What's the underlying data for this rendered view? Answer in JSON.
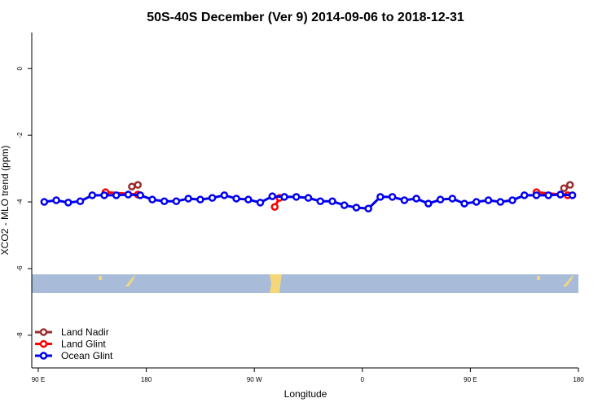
{
  "chart_data": {
    "type": "line",
    "title": "50S-40S December (Ver 9)   2014-09-06 to 2018-12-31",
    "x_label": "Longitude",
    "y_label": "XCO2 - MLO trend (ppm)",
    "xlim": [
      84.6,
      540
    ],
    "ylim": [
      -8.98,
      1.08
    ],
    "xticks": [
      {
        "value": 90,
        "label": "90 E"
      },
      {
        "value": 180,
        "label": "180"
      },
      {
        "value": 270,
        "label": "90 W"
      },
      {
        "value": 360,
        "label": "0"
      },
      {
        "value": 450,
        "label": "90 E"
      },
      {
        "value": 540,
        "label": "180"
      }
    ],
    "yticks": [
      0,
      -2,
      -4,
      -6,
      -8
    ],
    "legend": "bottom-left",
    "series": [
      {
        "name": "Land Nadir",
        "color": "#9b2d2d",
        "x": [
          168,
          173,
          528,
          533
        ],
        "values": [
          -3.54,
          -3.49,
          -3.59,
          -3.49
        ]
      },
      {
        "name": "Land Glint",
        "color": "#ff0000",
        "x": [
          146,
          173,
          287,
          291,
          505,
          531
        ],
        "values": [
          -3.71,
          -3.78,
          -4.15,
          -3.88,
          -3.71,
          -3.8
        ]
      },
      {
        "name": "Ocean Glint",
        "color": "#0000ee",
        "x": [
          95,
          105,
          115,
          125,
          135,
          145,
          155,
          165,
          175,
          185,
          195,
          205,
          215,
          225,
          235,
          245,
          255,
          265,
          275,
          285,
          295,
          305,
          315,
          325,
          335,
          345,
          355,
          365,
          375,
          385,
          395,
          405,
          415,
          425,
          435,
          445,
          455,
          465,
          475,
          485,
          495,
          505,
          515,
          525,
          535
        ],
        "values": [
          -4.0,
          -3.95,
          -4.02,
          -3.98,
          -3.8,
          -3.8,
          -3.8,
          -3.78,
          -3.8,
          -3.93,
          -3.98,
          -3.98,
          -3.9,
          -3.93,
          -3.88,
          -3.8,
          -3.9,
          -3.93,
          -4.02,
          -3.83,
          -3.85,
          -3.85,
          -3.88,
          -3.98,
          -3.98,
          -4.1,
          -4.17,
          -4.2,
          -3.85,
          -3.85,
          -3.95,
          -3.9,
          -4.05,
          -3.93,
          -3.9,
          -4.05,
          -4.0,
          -3.95,
          -4.0,
          -3.95,
          -3.8,
          -3.8,
          -3.8,
          -3.78,
          -3.8
        ]
      }
    ]
  }
}
